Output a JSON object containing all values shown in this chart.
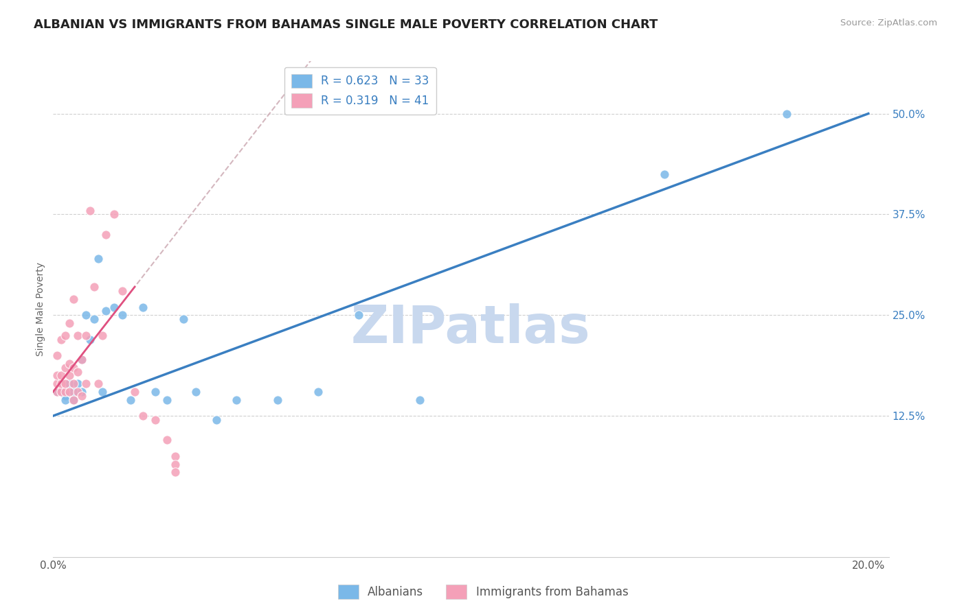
{
  "title": "ALBANIAN VS IMMIGRANTS FROM BAHAMAS SINGLE MALE POVERTY CORRELATION CHART",
  "source": "Source: ZipAtlas.com",
  "ylabel": "Single Male Poverty",
  "xlim": [
    0.0,
    0.205
  ],
  "ylim": [
    -0.05,
    0.565
  ],
  "xticks": [
    0.0,
    0.05,
    0.1,
    0.15,
    0.2
  ],
  "xtick_labels": [
    "0.0%",
    "",
    "",
    "",
    "20.0%"
  ],
  "ytick_vals": [
    0.125,
    0.25,
    0.375,
    0.5
  ],
  "ytick_labels": [
    "12.5%",
    "25.0%",
    "37.5%",
    "50.0%"
  ],
  "blue_color": "#7ab8e8",
  "pink_color": "#f4a0b8",
  "line_blue": "#3a7fc1",
  "line_pink": "#e05080",
  "line_dash": "#d0b0b8",
  "grid_color": "#d0d0d0",
  "background_color": "#ffffff",
  "watermark": "ZIPatlas",
  "watermark_color": "#c8d8ee",
  "R_blue": 0.623,
  "N_blue": 33,
  "R_pink": 0.319,
  "N_pink": 41,
  "legend_label_blue": "Albanians",
  "legend_label_pink": "Immigrants from Bahamas",
  "blue_scatter_x": [
    0.001,
    0.002,
    0.002,
    0.003,
    0.003,
    0.004,
    0.005,
    0.005,
    0.006,
    0.007,
    0.007,
    0.008,
    0.009,
    0.01,
    0.011,
    0.012,
    0.013,
    0.015,
    0.017,
    0.019,
    0.022,
    0.025,
    0.028,
    0.032,
    0.035,
    0.04,
    0.045,
    0.055,
    0.065,
    0.075,
    0.09,
    0.15,
    0.18
  ],
  "blue_scatter_y": [
    0.155,
    0.155,
    0.155,
    0.15,
    0.145,
    0.165,
    0.145,
    0.155,
    0.165,
    0.195,
    0.155,
    0.25,
    0.22,
    0.245,
    0.32,
    0.155,
    0.255,
    0.26,
    0.25,
    0.145,
    0.26,
    0.155,
    0.145,
    0.245,
    0.155,
    0.12,
    0.145,
    0.145,
    0.155,
    0.25,
    0.145,
    0.425,
    0.5
  ],
  "pink_scatter_x": [
    0.001,
    0.001,
    0.001,
    0.001,
    0.002,
    0.002,
    0.002,
    0.002,
    0.003,
    0.003,
    0.003,
    0.003,
    0.004,
    0.004,
    0.004,
    0.004,
    0.005,
    0.005,
    0.005,
    0.005,
    0.006,
    0.006,
    0.006,
    0.007,
    0.007,
    0.008,
    0.008,
    0.009,
    0.01,
    0.011,
    0.012,
    0.013,
    0.015,
    0.017,
    0.02,
    0.022,
    0.025,
    0.028,
    0.03,
    0.03,
    0.03
  ],
  "pink_scatter_y": [
    0.155,
    0.165,
    0.175,
    0.2,
    0.155,
    0.165,
    0.175,
    0.22,
    0.155,
    0.165,
    0.185,
    0.225,
    0.155,
    0.175,
    0.19,
    0.24,
    0.145,
    0.165,
    0.185,
    0.27,
    0.155,
    0.18,
    0.225,
    0.15,
    0.195,
    0.165,
    0.225,
    0.38,
    0.285,
    0.165,
    0.225,
    0.35,
    0.375,
    0.28,
    0.155,
    0.125,
    0.12,
    0.095,
    0.075,
    0.065,
    0.055
  ],
  "title_fontsize": 13,
  "axis_label_fontsize": 10,
  "tick_fontsize": 11,
  "legend_fontsize": 12
}
